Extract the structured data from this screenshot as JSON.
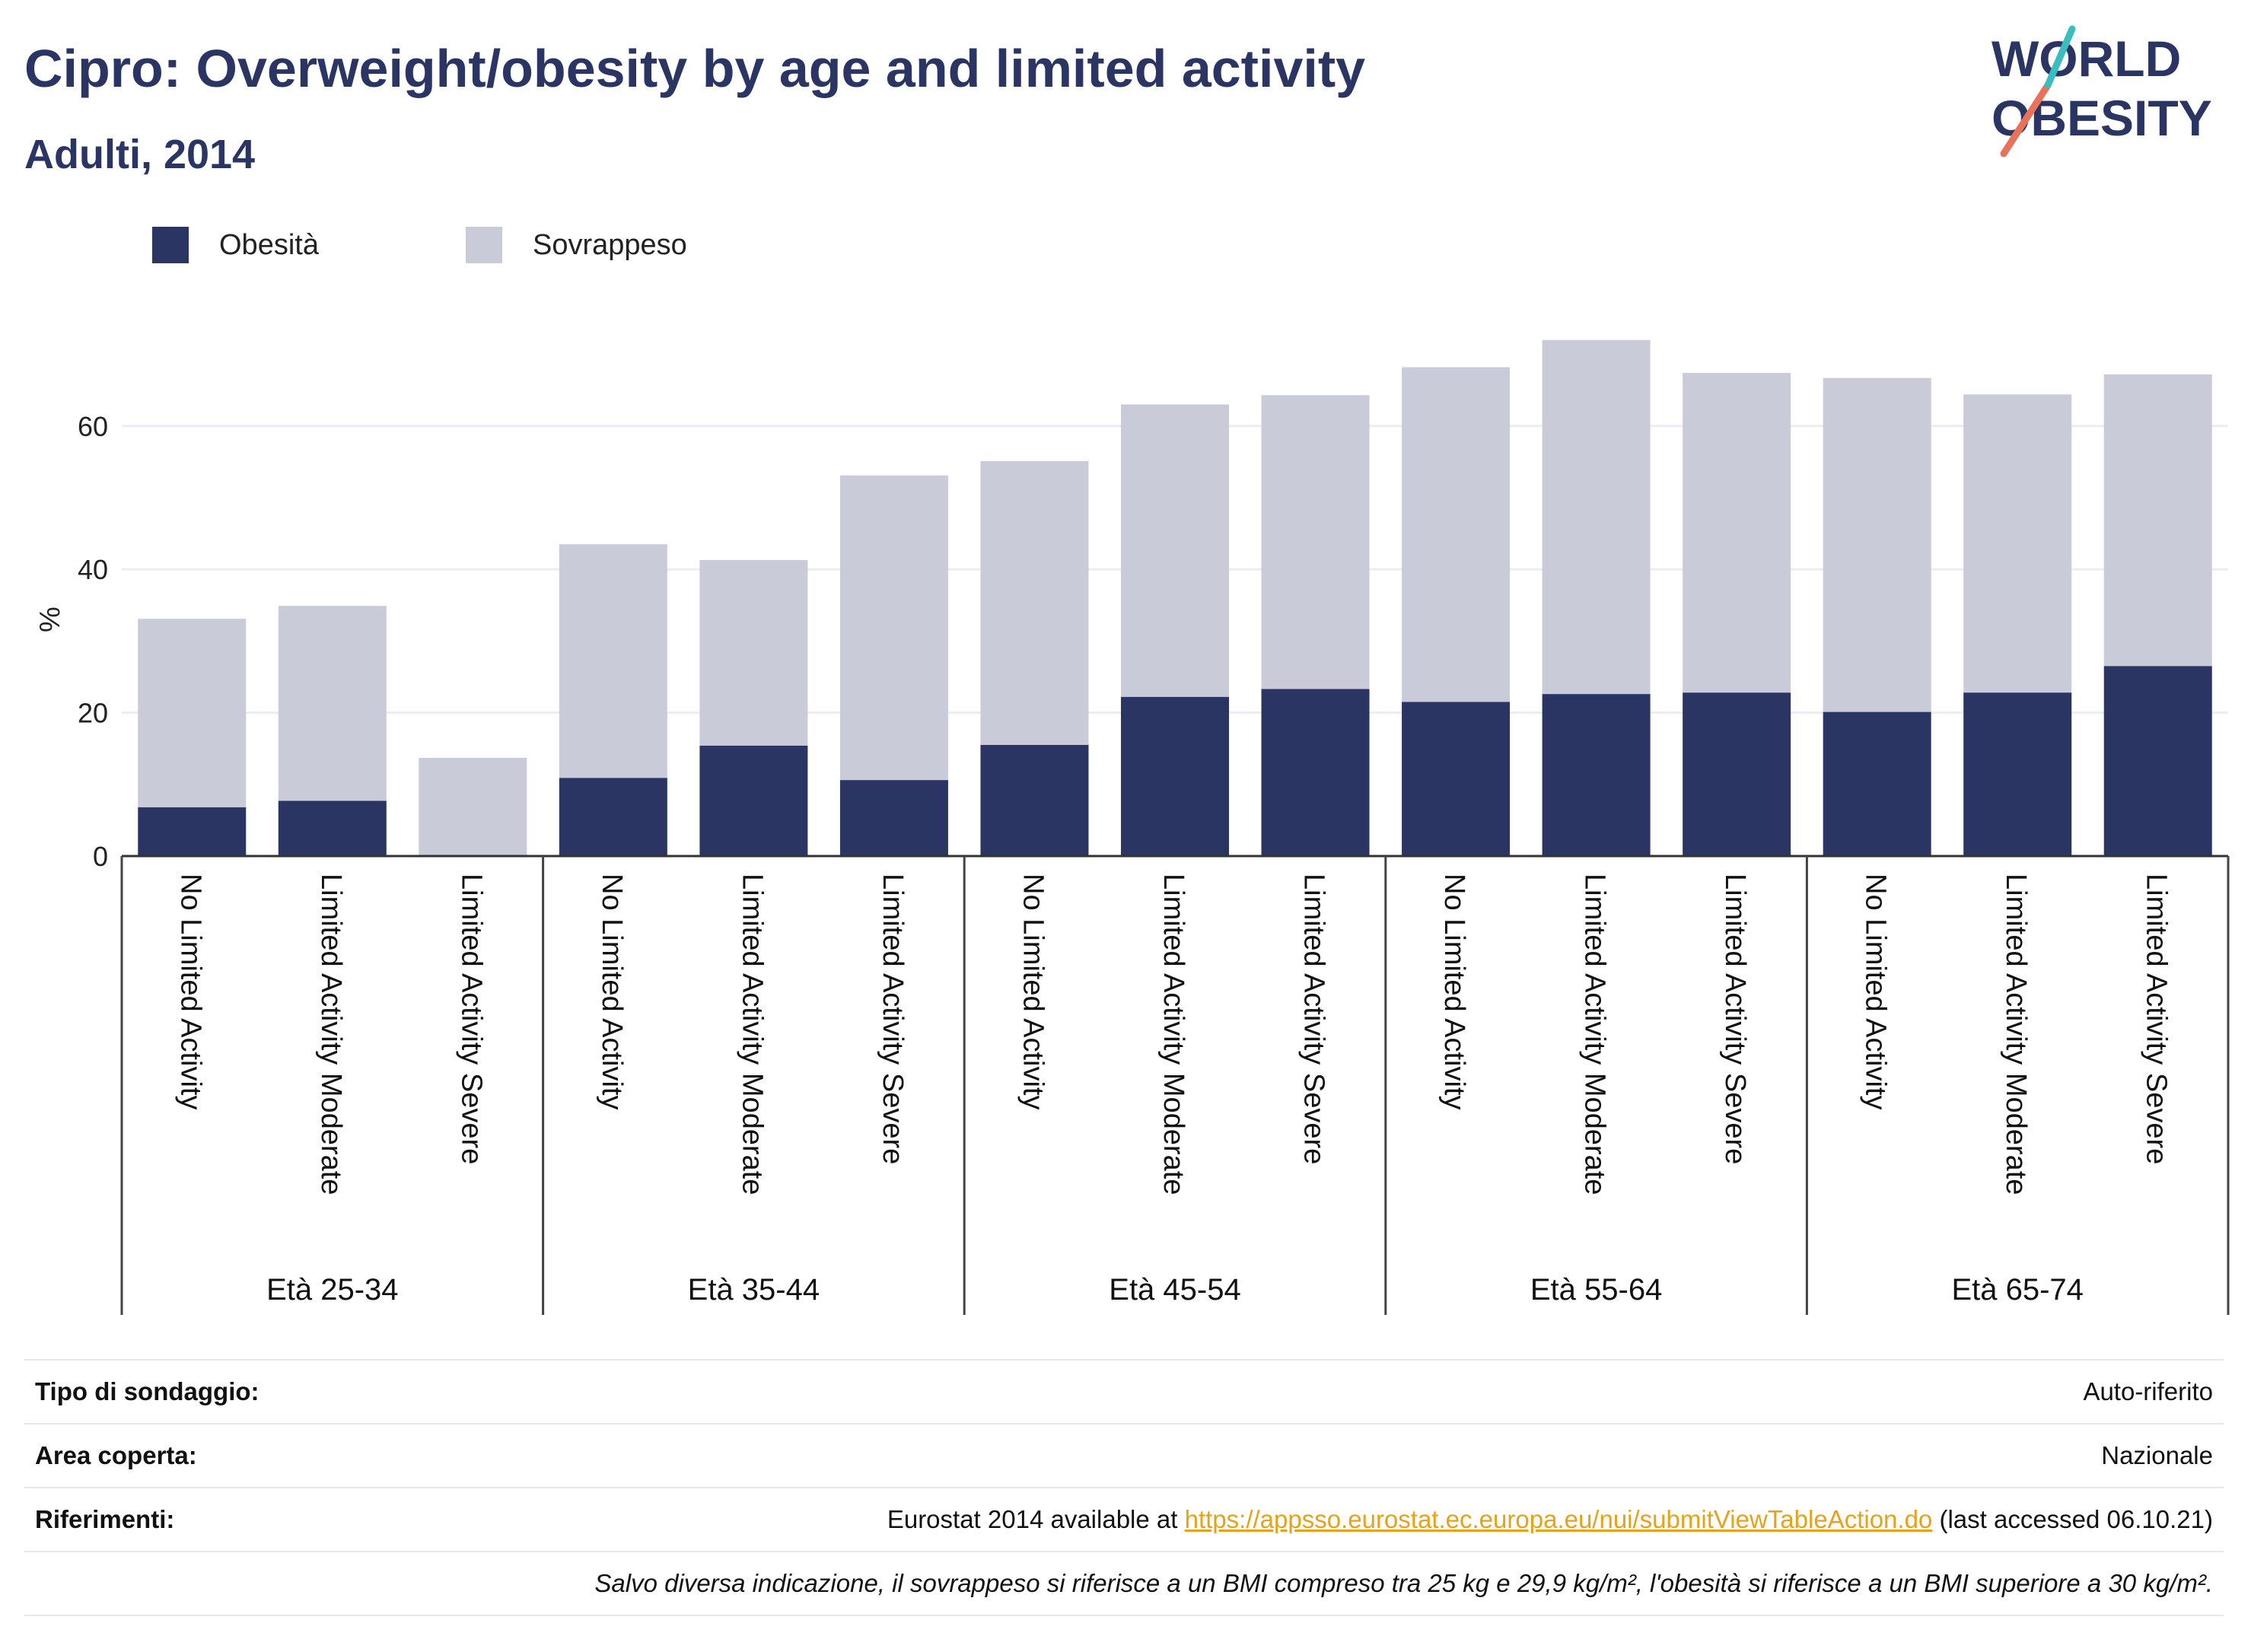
{
  "header": {
    "title": "Cipro: Overweight/obesity by age and limited activity",
    "subtitle": "Adulti, 2014",
    "logo_line1": "WORLD",
    "logo_line2": "OBESITY"
  },
  "legend": {
    "obesity": "Obesità",
    "overweight": "Sovrappeso"
  },
  "colors": {
    "obesity": "#2a3563",
    "overweight": "#c9cbd8",
    "title": "#2a3563",
    "link": "#e6a219"
  },
  "chart_data": {
    "type": "bar",
    "stacked": true,
    "ylabel": "%",
    "ylim": [
      0,
      75
    ],
    "yticks": [
      0,
      20,
      40,
      60
    ],
    "grid": true,
    "legend_position": "top-left",
    "groups": [
      "Età 25-34",
      "Età 35-44",
      "Età 45-54",
      "Età 55-64",
      "Età 65-74"
    ],
    "categories": [
      "No Limited Activity",
      "Limited Activity Moderate",
      "Limited Activity Severe",
      "No Limited Activity",
      "Limited Activity Moderate",
      "Limited Activity Severe",
      "No Limited Activity",
      "Limited Activity Moderate",
      "Limited Activity Severe",
      "No Limited Activity",
      "Limited Activity Moderate",
      "Limited Activity Severe",
      "No Limited Activity",
      "Limited Activity Moderate",
      "Limited Activity Severe"
    ],
    "series": [
      {
        "name": "Obesità",
        "values": [
          6.8,
          7.7,
          0,
          10.9,
          15.4,
          10.6,
          15.5,
          22.2,
          23.3,
          21.5,
          22.6,
          22.8,
          20.1,
          22.8,
          26.5
        ]
      },
      {
        "name": "Sovrappeso",
        "values": [
          26.3,
          27.2,
          13.7,
          32.6,
          25.9,
          42.5,
          39.6,
          40.8,
          41.0,
          46.7,
          49.4,
          44.6,
          46.6,
          41.6,
          40.7
        ]
      }
    ]
  },
  "info": {
    "survey_label": "Tipo di sondaggio:",
    "survey_value": "Auto-riferito",
    "area_label": "Area coperta:",
    "area_value": "Nazionale",
    "refs_label": "Riferimenti:",
    "refs_prefix": "Eurostat 2014 available at",
    "refs_link": "https://appsso.eurostat.ec.europa.eu/nui/submitViewTableAction.do",
    "refs_suffix": "(last accessed 06.10.21)",
    "note": "Salvo diversa indicazione, il sovrappeso si riferisce a un BMI compreso tra 25 kg e 29,9 kg/m², l'obesità si riferisce a un BMI superiore a 30 kg/m²."
  }
}
